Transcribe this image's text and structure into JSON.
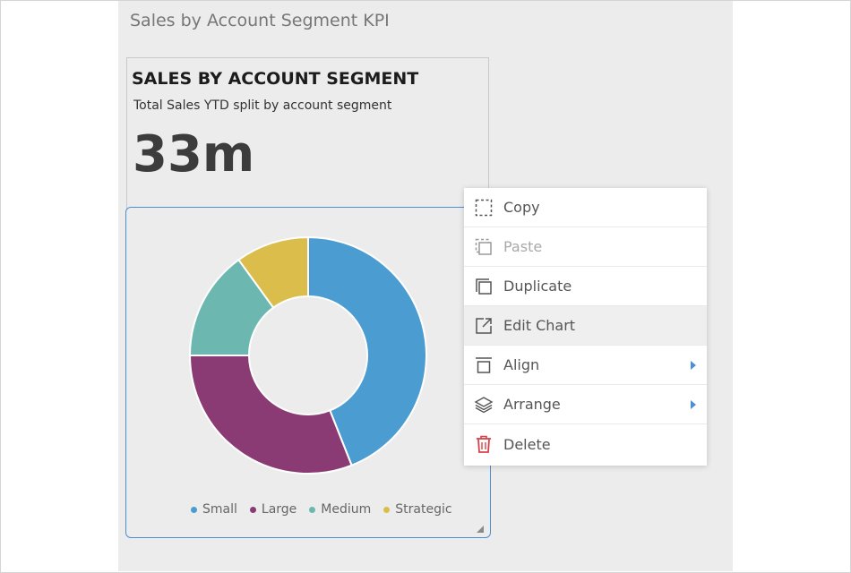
{
  "page": {
    "title": "Sales by Account Segment KPI"
  },
  "kpi": {
    "title": "SALES BY ACCOUNT SEGMENT",
    "subtitle": "Total Sales YTD split by account segment",
    "value": "33m"
  },
  "chart_data": {
    "type": "pie",
    "donut": true,
    "categories": [
      "Small",
      "Large",
      "Medium",
      "Strategic"
    ],
    "values": [
      44,
      31,
      15,
      10
    ],
    "colors": [
      "#4a9cd1",
      "#8b3b73",
      "#6cb7b0",
      "#dbbd4b"
    ],
    "legend_position": "bottom"
  },
  "context_menu": {
    "items": [
      {
        "label": "Copy",
        "icon": "copy-icon",
        "disabled": false,
        "submenu": false
      },
      {
        "label": "Paste",
        "icon": "paste-icon",
        "disabled": true,
        "submenu": false
      },
      {
        "label": "Duplicate",
        "icon": "duplicate-icon",
        "disabled": false,
        "submenu": false
      },
      {
        "label": "Edit Chart",
        "icon": "edit-chart-icon",
        "disabled": false,
        "submenu": false,
        "highlighted": true
      },
      {
        "label": "Align",
        "icon": "align-icon",
        "disabled": false,
        "submenu": true
      },
      {
        "label": "Arrange",
        "icon": "layers-icon",
        "disabled": false,
        "submenu": true
      },
      {
        "label": "Delete",
        "icon": "trash-icon",
        "disabled": false,
        "submenu": false
      }
    ]
  },
  "colors": {
    "accent": "#4a90d9",
    "submenu_arrow": "#4a90d9",
    "delete_icon": "#d9414a"
  }
}
